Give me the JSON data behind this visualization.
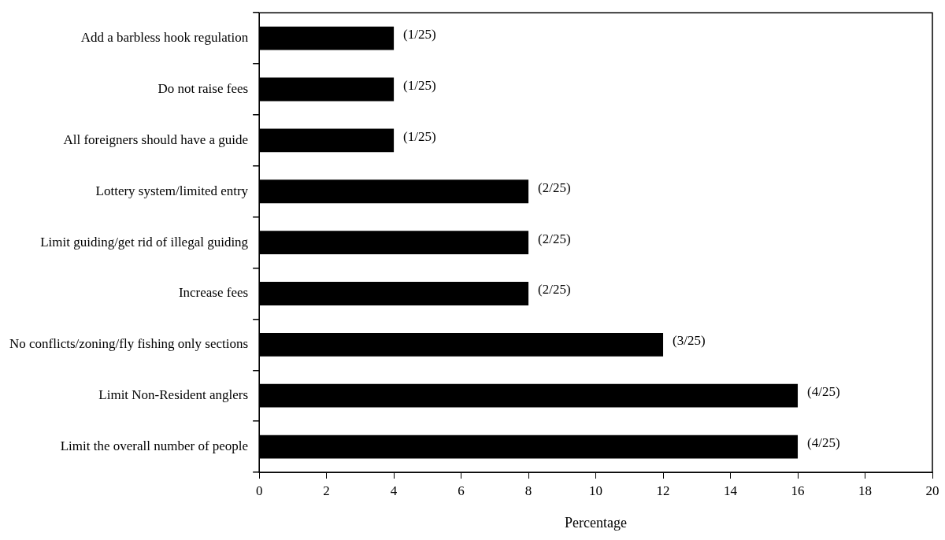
{
  "chart_data": {
    "type": "bar",
    "orientation": "horizontal",
    "xlabel": "Percentage",
    "categories": [
      "Add a barbless hook regulation",
      "Do not raise fees",
      "All foreigners should have a guide",
      "Lottery system/limited entry",
      "Limit guiding/get rid of illegal guiding",
      "Increase fees",
      "No conflicts/zoning/fly fishing only sections",
      "Limit Non-Resident anglers",
      "Limit the overall number of people"
    ],
    "values": [
      4,
      4,
      4,
      8,
      8,
      8,
      12,
      16,
      16
    ],
    "value_labels": [
      "(1/25)",
      "(1/25)",
      "(1/25)",
      "(2/25)",
      "(2/25)",
      "(2/25)",
      "(3/25)",
      "(4/25)",
      "(4/25)"
    ],
    "color": "#000000",
    "xlim": [
      0,
      20
    ],
    "xticks": [
      0,
      2,
      4,
      6,
      8,
      10,
      12,
      14,
      16,
      18,
      20
    ],
    "grid": false,
    "legend": false
  }
}
